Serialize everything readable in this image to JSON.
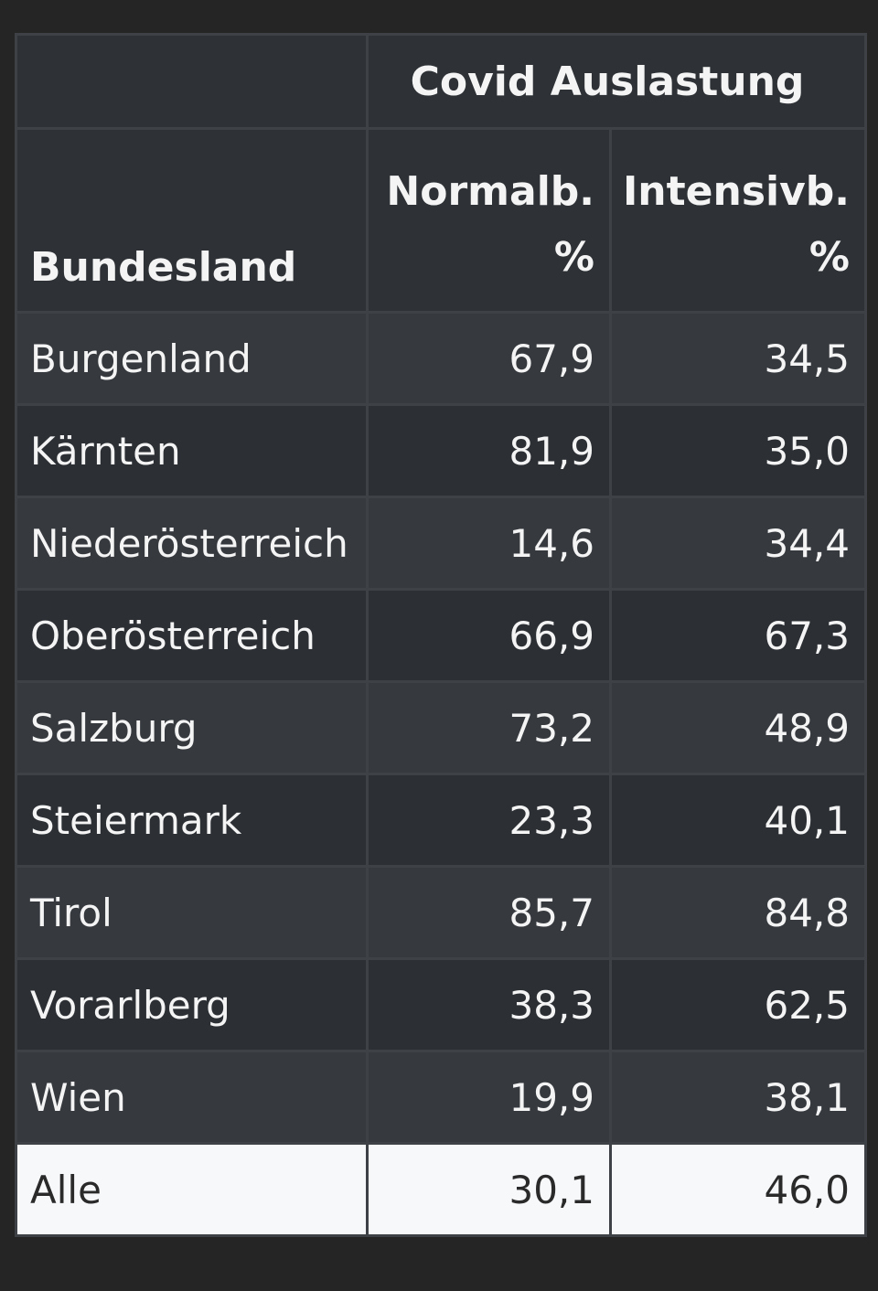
{
  "chart_data": {
    "type": "table",
    "group_header": "Covid Auslastung",
    "columns": [
      "Bundesland",
      "Normalb. %",
      "Intensivb. %"
    ],
    "column_headers": {
      "region": "Bundesland",
      "normal": [
        "Normalb.",
        "%"
      ],
      "intensive": [
        "Intensivb.",
        "%"
      ]
    },
    "rows": [
      {
        "region": "Burgenland",
        "normal": "67,9",
        "intensive": "34,5"
      },
      {
        "region": "Kärnten",
        "normal": "81,9",
        "intensive": "35,0"
      },
      {
        "region": "Niederösterreich",
        "normal": "14,6",
        "intensive": "34,4"
      },
      {
        "region": "Oberösterreich",
        "normal": "66,9",
        "intensive": "67,3"
      },
      {
        "region": "Salzburg",
        "normal": "73,2",
        "intensive": "48,9"
      },
      {
        "region": "Steiermark",
        "normal": "23,3",
        "intensive": "40,1"
      },
      {
        "region": "Tirol",
        "normal": "85,7",
        "intensive": "84,8"
      },
      {
        "region": "Vorarlberg",
        "normal": "38,3",
        "intensive": "62,5"
      },
      {
        "region": "Wien",
        "normal": "19,9",
        "intensive": "38,1"
      }
    ],
    "total": {
      "region": "Alle",
      "normal": "30,1",
      "intensive": "46,0"
    }
  },
  "colors": {
    "page_background": "#252526",
    "header_background": "#2e3236",
    "row_odd": "#363a3f",
    "row_even": "#2c3035",
    "total_background": "#f7f8fa",
    "border": "#3e4246"
  }
}
